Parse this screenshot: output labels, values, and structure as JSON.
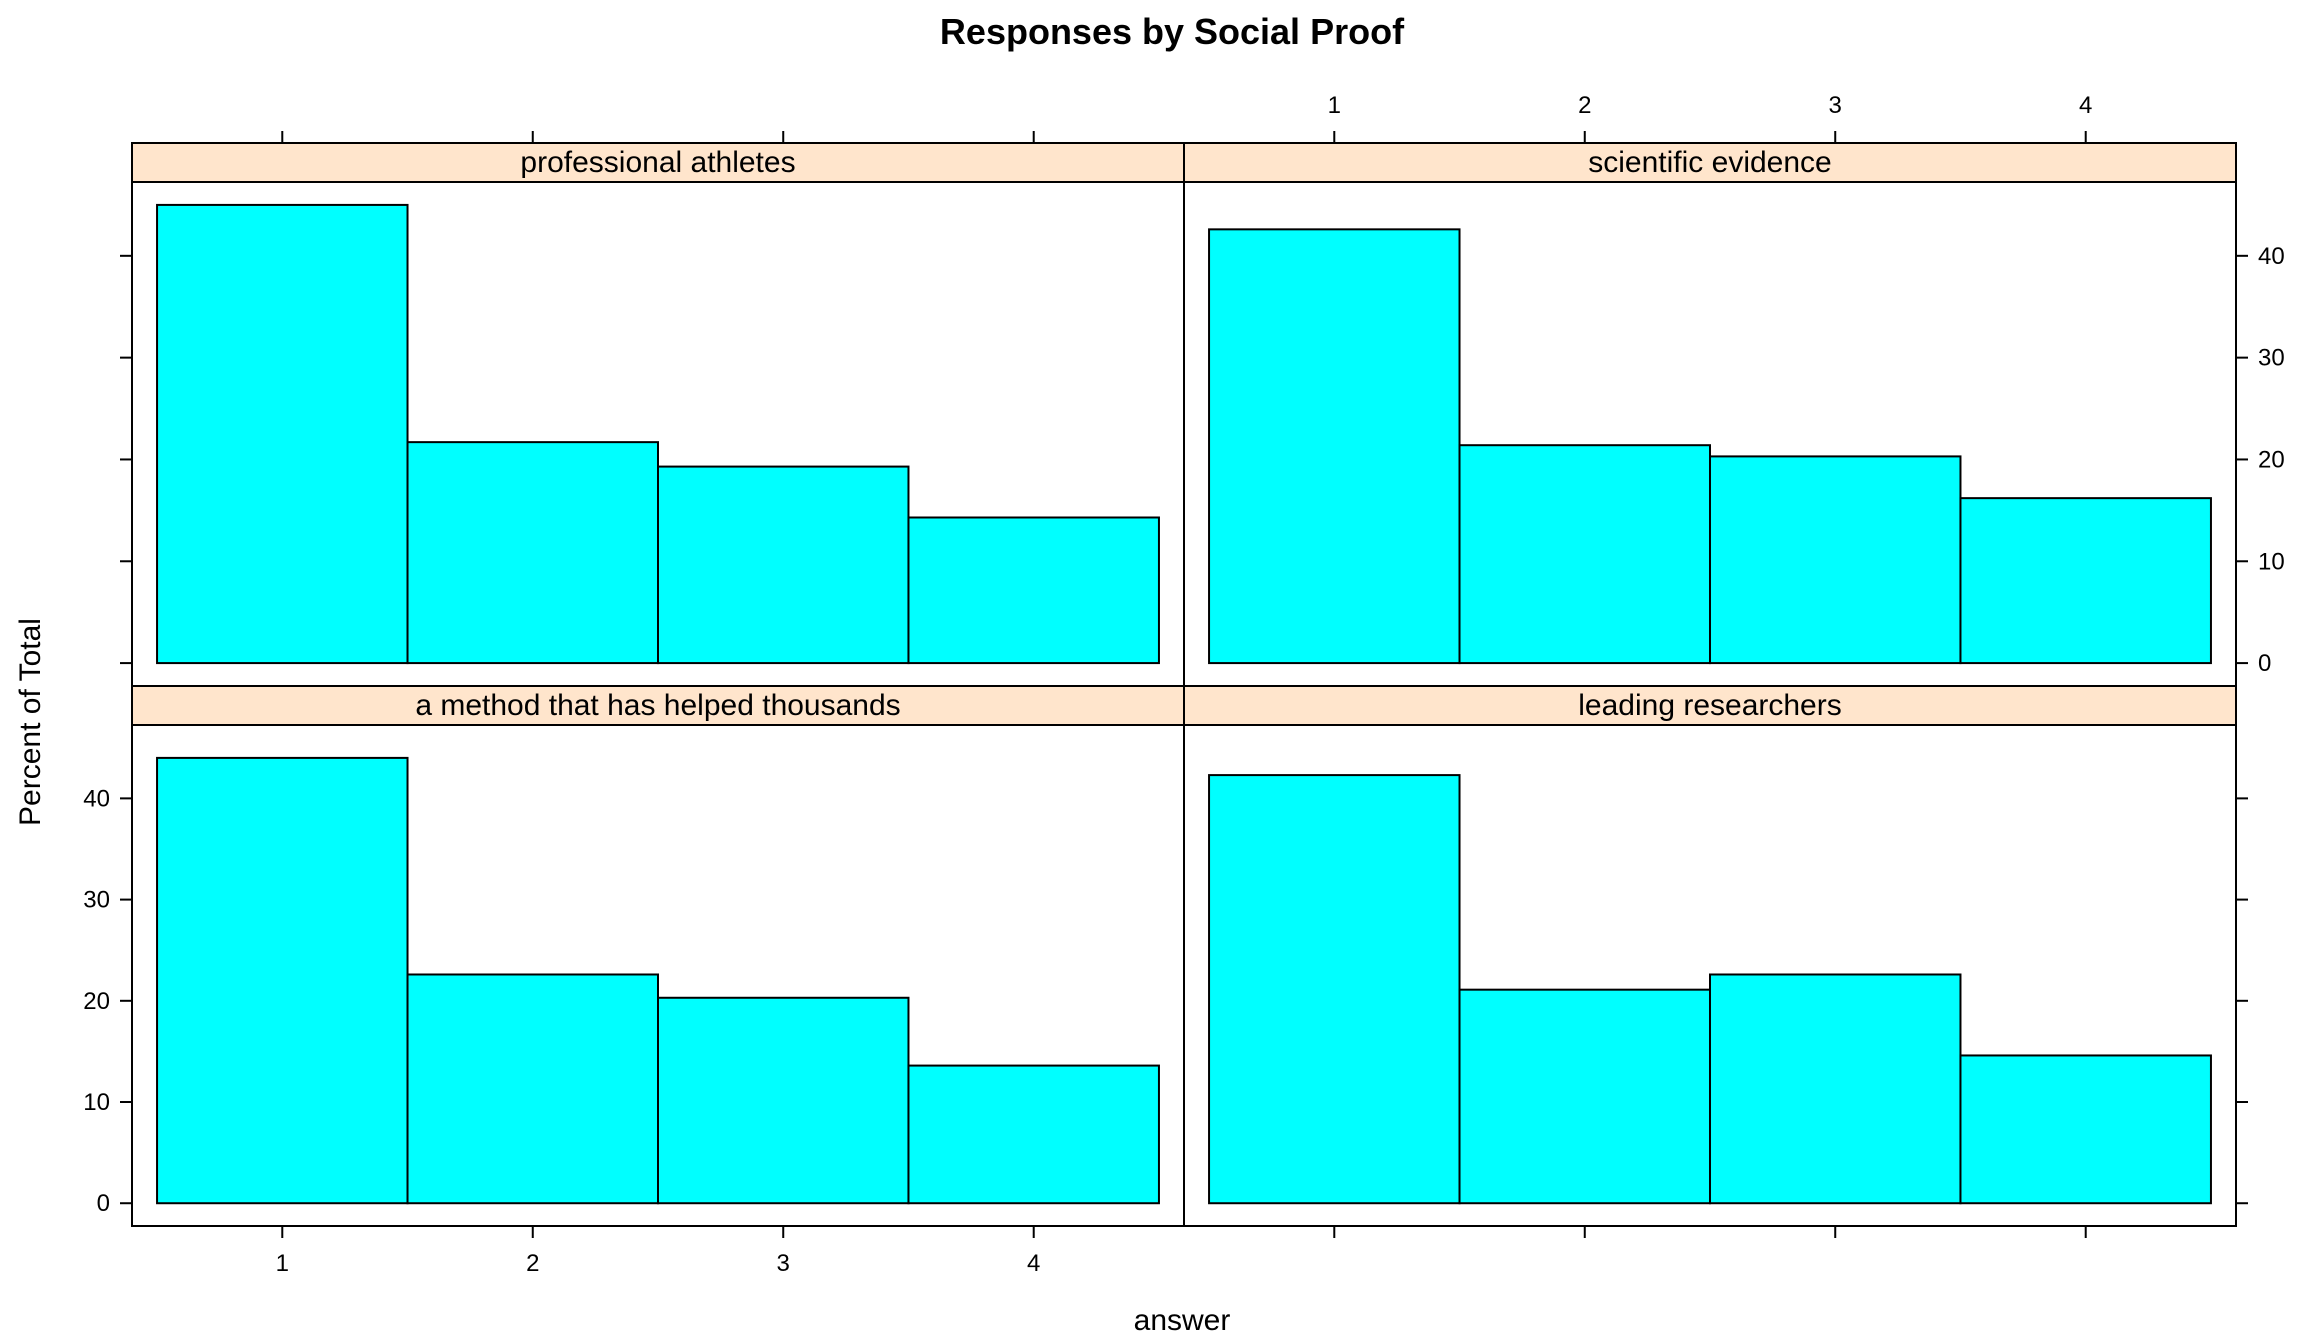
{
  "chart_data": {
    "type": "bar",
    "title": "Responses by Social Proof",
    "xlabel": "answer",
    "ylabel": "Percent of Total",
    "categories": [
      "1",
      "2",
      "3",
      "4"
    ],
    "y_ticks": [
      0,
      10,
      20,
      30,
      40
    ],
    "ylim": [
      -2.25,
      47.25
    ],
    "grid": false,
    "colors": {
      "bar_fill": "#00FFFF",
      "bar_stroke": "#000000",
      "strip_fill": "#FFE5CC"
    },
    "panels": [
      {
        "name": "professional athletes",
        "values": [
          45.0,
          21.7,
          19.3,
          14.3
        ]
      },
      {
        "name": "scientific evidence",
        "values": [
          42.6,
          21.4,
          20.3,
          16.2
        ]
      },
      {
        "name": "a method that has helped thousands",
        "values": [
          44.0,
          22.6,
          20.3,
          13.6
        ]
      },
      {
        "name": "leading researchers",
        "values": [
          42.3,
          21.1,
          22.6,
          14.6
        ]
      }
    ]
  }
}
